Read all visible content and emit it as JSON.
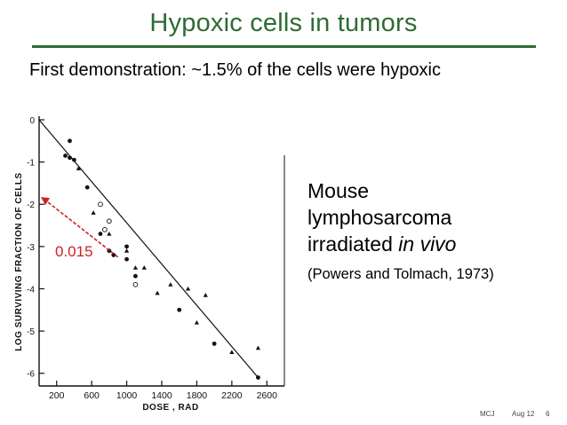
{
  "slide": {
    "title": "Hypoxic cells in tumors",
    "subtitle": "First demonstration: ~1.5% of the cells were hypoxic",
    "caption_line1": "Mouse",
    "caption_line2": "lymphosarcoma",
    "caption_line3_prefix": "irradiated ",
    "caption_line3_em": "in vivo",
    "caption_ref": "(Powers and Tolmach, 1973)",
    "footer_author": "MCJ",
    "footer_date": "Aug 12",
    "footer_page": "6"
  },
  "colors": {
    "title": "#2f6b34",
    "annotation": "#cc2222",
    "ink": "#111111"
  },
  "chart_data": {
    "type": "scatter",
    "title": "",
    "xlabel": "DOSE , RAD",
    "ylabel": "LOG SURVIVING FRACTION OF CELLS",
    "xlim": [
      0,
      2800
    ],
    "ylim": [
      -6.3,
      0
    ],
    "x_ticks": [
      200,
      600,
      1000,
      1400,
      1800,
      2200,
      2600
    ],
    "x_tick_labels": [
      "200",
      "600",
      "1000",
      "1400",
      "1800",
      "2200",
      "2600"
    ],
    "y_ticks": [
      0,
      -1,
      -2,
      -3,
      -4,
      -5,
      -6
    ],
    "y_tick_labels": [
      "0",
      "-1",
      "-2",
      "-3",
      "-4",
      "-5",
      "-6"
    ],
    "fit_line": [
      [
        0,
        0
      ],
      [
        2500,
        -6.1
      ]
    ],
    "extrapolation": {
      "from": [
        900,
        -3.25
      ],
      "to": [
        0,
        -1.83
      ],
      "label": "0.015"
    },
    "series": [
      {
        "marker": "circle-filled",
        "points": [
          [
            300,
            -0.85
          ],
          [
            350,
            -0.5
          ],
          [
            400,
            -0.95
          ],
          [
            550,
            -1.6
          ],
          [
            700,
            -2.7
          ],
          [
            800,
            -3.1
          ],
          [
            1000,
            -3.0
          ],
          [
            1000,
            -3.3
          ],
          [
            1100,
            -3.7
          ],
          [
            1600,
            -4.5
          ],
          [
            2000,
            -5.3
          ],
          [
            2500,
            -6.1
          ],
          [
            350,
            -0.9
          ],
          [
            850,
            -3.2
          ]
        ]
      },
      {
        "marker": "circle-open",
        "points": [
          [
            700,
            -2.0
          ],
          [
            800,
            -2.4
          ],
          [
            1100,
            -3.9
          ],
          [
            750,
            -2.6
          ]
        ]
      },
      {
        "marker": "triangle",
        "points": [
          [
            450,
            -1.15
          ],
          [
            620,
            -2.2
          ],
          [
            800,
            -2.7
          ],
          [
            1000,
            -3.1
          ],
          [
            1200,
            -3.5
          ],
          [
            1500,
            -3.9
          ],
          [
            1700,
            -4.0
          ],
          [
            1900,
            -4.15
          ],
          [
            2200,
            -5.5
          ],
          [
            2500,
            -5.4
          ],
          [
            1350,
            -4.1
          ],
          [
            1800,
            -4.8
          ],
          [
            1100,
            -3.5
          ]
        ]
      }
    ]
  }
}
